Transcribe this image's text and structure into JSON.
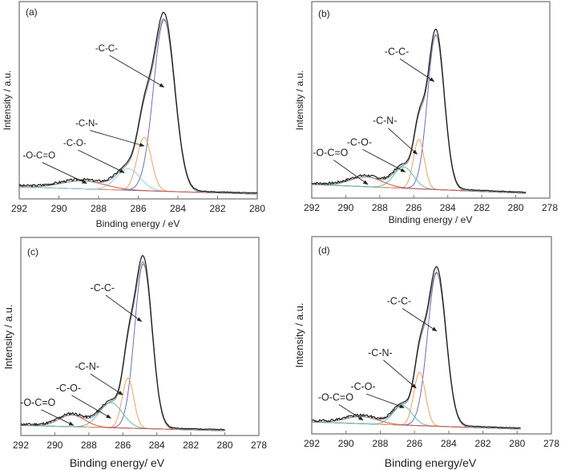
{
  "figure": {
    "description": "XPS C1s high-resolution spectra with peak deconvolution, four samples"
  },
  "colors": {
    "experimental": "#1a1a1a",
    "envelope": "#8a8a8a",
    "cc": "#6f6fb8",
    "cn": "#f0a060",
    "co_a": "#8fcfe0",
    "co": "#5bbfb0",
    "ocoo": "#d2544a",
    "background": "#4a7fc0",
    "axis": "#7a7a7a",
    "arrow": "#222222"
  },
  "chart_data": [
    {
      "type": "line",
      "panel_label": "(a)",
      "xlabel": "Binding energy / eV",
      "ylabel": "Intensity / a.u.",
      "xlim": [
        292,
        280
      ],
      "xticks": [
        "292",
        "290",
        "288",
        "286",
        "284",
        "282",
        "280"
      ],
      "ylim": [
        0,
        1.08
      ],
      "grid": false,
      "legend": "none",
      "components": [
        {
          "name": "-C-C-",
          "center": 284.7,
          "height": 0.96,
          "fwhm": 1.25,
          "color_key": "cc",
          "label_pos": [
            287.6,
            0.8
          ],
          "arrow_to": [
            284.7,
            0.6
          ]
        },
        {
          "name": "-C-N-",
          "center": 285.7,
          "height": 0.3,
          "fwhm": 0.85,
          "color_key": "cn",
          "label_pos": [
            288.6,
            0.38
          ],
          "arrow_to": [
            285.7,
            0.27
          ]
        },
        {
          "name": "-C-O-",
          "center": 286.5,
          "height": 0.12,
          "fwhm": 1.4,
          "color_key": "co_a",
          "label_pos": [
            289.2,
            0.27
          ],
          "arrow_to": [
            286.7,
            0.12
          ]
        },
        {
          "name": "-O-C=O",
          "center": 288.8,
          "height": 0.045,
          "fwhm": 2.6,
          "color_key": "ocoo",
          "label_pos": [
            291.0,
            0.2
          ],
          "arrow_to": [
            288.6,
            0.06
          ]
        }
      ],
      "baseline": [
        0.04,
        0.0
      ],
      "noise_seed": 3
    },
    {
      "type": "line",
      "panel_label": "(b)",
      "xlabel": "Binding energy / eV",
      "ylabel": "Intensity / a.u.",
      "xlim": [
        292,
        278
      ],
      "xticks": [
        "292",
        "290",
        "288",
        "286",
        "284",
        "282",
        "280",
        "278"
      ],
      "ylim": [
        0,
        1.08
      ],
      "grid": false,
      "legend": "none",
      "data_end": 279.4,
      "components": [
        {
          "name": "-C-C-",
          "center": 284.7,
          "height": 0.87,
          "fwhm": 1.15,
          "color_key": "cc",
          "label_pos": [
            287.0,
            0.78
          ],
          "arrow_to": [
            284.8,
            0.63
          ]
        },
        {
          "name": "-C-N-",
          "center": 285.7,
          "height": 0.28,
          "fwhm": 0.75,
          "color_key": "cn",
          "label_pos": [
            287.7,
            0.39
          ],
          "arrow_to": [
            285.8,
            0.22
          ]
        },
        {
          "name": "-C-O-",
          "center": 286.6,
          "height": 0.12,
          "fwhm": 1.35,
          "color_key": "co",
          "label_pos": [
            289.2,
            0.27
          ],
          "arrow_to": [
            286.5,
            0.12
          ]
        },
        {
          "name": "-O-C=O",
          "center": 288.8,
          "height": 0.055,
          "fwhm": 2.2,
          "color_key": "ocoo",
          "label_pos": [
            290.9,
            0.21
          ],
          "arrow_to": [
            288.7,
            0.05
          ]
        }
      ],
      "baseline": [
        0.05,
        0.0
      ],
      "noise_seed": 7
    },
    {
      "type": "line",
      "panel_label": "(c)",
      "xlabel": "Binding energy/ eV",
      "ylabel": "Intensity / a.u.",
      "xlim": [
        292,
        278
      ],
      "xticks": [
        "292",
        "290",
        "288",
        "286",
        "284",
        "282",
        "280",
        "278"
      ],
      "ylim": [
        0,
        1.08
      ],
      "grid": false,
      "legend": "none",
      "data_end": 280.0,
      "components": [
        {
          "name": "-C-C-",
          "center": 284.8,
          "height": 0.92,
          "fwhm": 1.2,
          "color_key": "cc",
          "label_pos": [
            287.2,
            0.78
          ],
          "arrow_to": [
            284.9,
            0.61
          ]
        },
        {
          "name": "-C-N-",
          "center": 285.7,
          "height": 0.28,
          "fwhm": 0.8,
          "color_key": "cn",
          "label_pos": [
            288.1,
            0.34
          ],
          "arrow_to": [
            286.0,
            0.2
          ]
        },
        {
          "name": "-C-O-",
          "center": 286.7,
          "height": 0.14,
          "fwhm": 1.6,
          "color_key": "co",
          "label_pos": [
            289.2,
            0.22
          ],
          "arrow_to": [
            286.7,
            0.07
          ]
        },
        {
          "name": "-O-C=O",
          "center": 289.0,
          "height": 0.065,
          "fwhm": 1.8,
          "color_key": "ocoo",
          "label_pos": [
            291.0,
            0.14
          ],
          "arrow_to": [
            288.9,
            0.03
          ]
        }
      ],
      "baseline": [
        0.03,
        0.0
      ],
      "noise_seed": 11
    },
    {
      "type": "line",
      "panel_label": "(d)",
      "xlabel": "Binding energy/eV",
      "ylabel": "Intensity / a.u.",
      "xlim": [
        292,
        278
      ],
      "xticks": [
        "292",
        "290",
        "288",
        "286",
        "284",
        "282",
        "280",
        "278"
      ],
      "ylim": [
        0,
        1.08
      ],
      "grid": false,
      "legend": "none",
      "data_end": 279.8,
      "components": [
        {
          "name": "-C-C-",
          "center": 284.7,
          "height": 0.86,
          "fwhm": 1.25,
          "color_key": "cc",
          "label_pos": [
            286.9,
            0.7
          ],
          "arrow_to": [
            284.7,
            0.55
          ]
        },
        {
          "name": "-C-N-",
          "center": 285.7,
          "height": 0.3,
          "fwhm": 0.8,
          "color_key": "cn",
          "label_pos": [
            288.0,
            0.41
          ],
          "arrow_to": [
            285.9,
            0.23
          ]
        },
        {
          "name": "-C-O-",
          "center": 286.7,
          "height": 0.11,
          "fwhm": 1.3,
          "color_key": "co",
          "label_pos": [
            289.0,
            0.22
          ],
          "arrow_to": [
            286.6,
            0.12
          ]
        },
        {
          "name": "-O-C=O",
          "center": 289.1,
          "height": 0.04,
          "fwhm": 2.2,
          "color_key": "ocoo",
          "label_pos": [
            290.6,
            0.16
          ],
          "arrow_to": [
            289.0,
            0.05
          ]
        }
      ],
      "baseline": [
        0.04,
        0.0
      ],
      "noise_seed": 19
    }
  ]
}
